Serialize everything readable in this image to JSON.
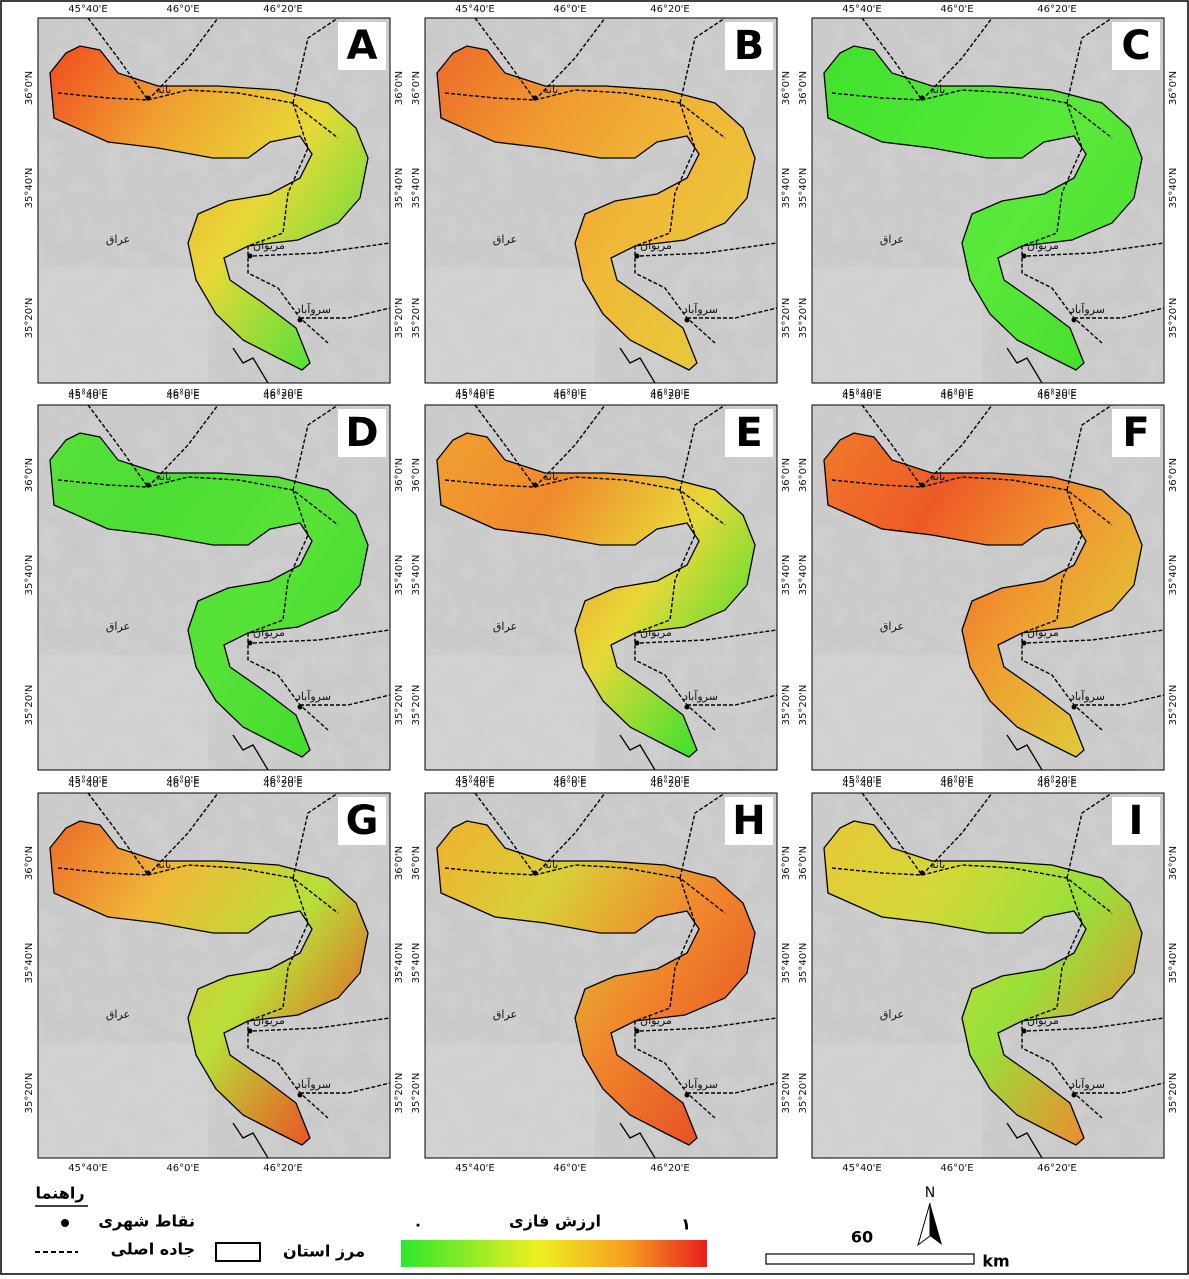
{
  "panels": [
    {
      "label": "A"
    },
    {
      "label": "B"
    },
    {
      "label": "C"
    },
    {
      "label": "D"
    },
    {
      "label": "E"
    },
    {
      "label": "F"
    },
    {
      "label": "G"
    },
    {
      "label": "H"
    },
    {
      "label": "I"
    }
  ],
  "lon_labels": [
    "45°40'E",
    "46°0'E",
    "46°20'E"
  ],
  "lat_labels": [
    "36°0'N",
    "35°40'N",
    "35°20'N"
  ],
  "place_labels": {
    "country": "عراق",
    "city1": "بانه",
    "city2": "مریوان",
    "city3": "سروآباد"
  },
  "legend": {
    "title": "راهنما",
    "urban_points": "نقاط شهری",
    "main_road": "جاده اصلی",
    "province_border": "مرز استان",
    "fuzzy_value": "ارزش فازی",
    "min": "۰",
    "max": "۱",
    "scale": "60",
    "unit": "km",
    "north": "N"
  }
}
